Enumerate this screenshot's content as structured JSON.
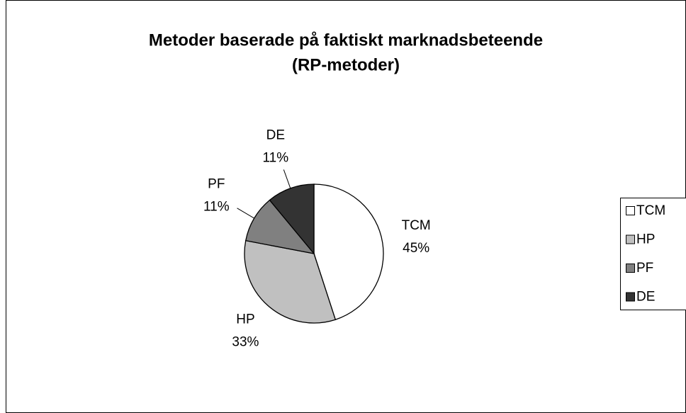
{
  "chart_data": {
    "type": "pie",
    "title": [
      "Metoder baserade på faktiskt marknadsbeteende",
      "(RP-metoder)"
    ],
    "categories": [
      "TCM",
      "HP",
      "PF",
      "DE"
    ],
    "values": [
      45,
      33,
      11,
      11
    ],
    "value_labels": [
      "45%",
      "33%",
      "11%",
      "11%"
    ],
    "colors": [
      "#ffffff",
      "#c0c0c0",
      "#808080",
      "#333333"
    ],
    "legend": "right"
  }
}
